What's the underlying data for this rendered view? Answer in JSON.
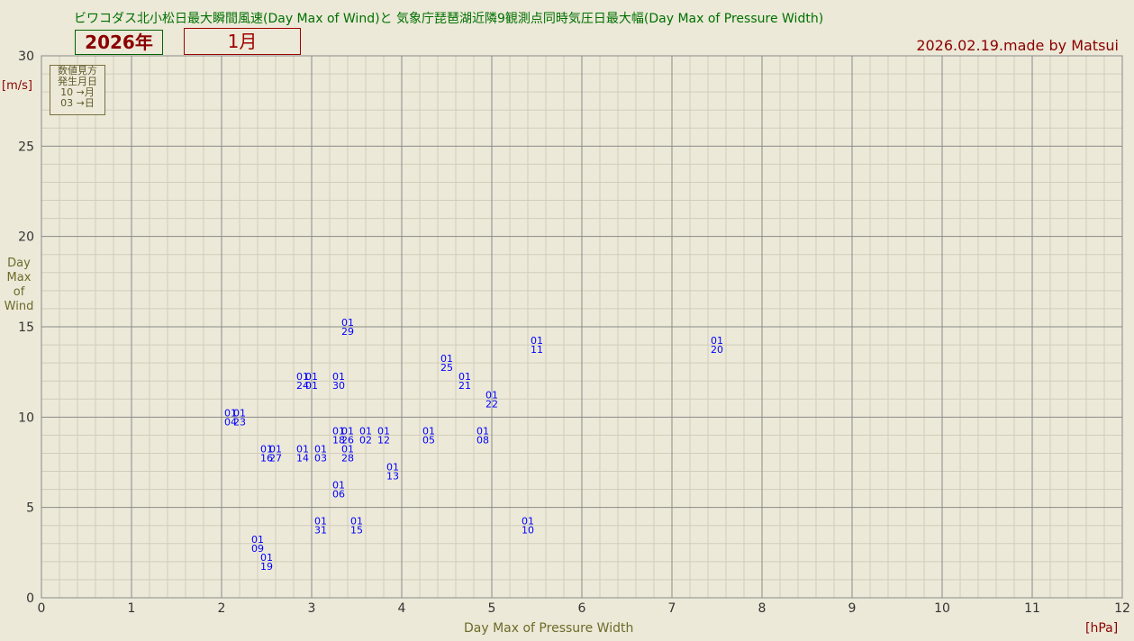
{
  "header": {
    "title": "ビワコダス北小松日最大瞬間風速(Day Max of Wind)と 気象庁琵琶湖近隣9観測点同時気圧日最大幅(Day Max of Pressure Width)",
    "year": "2026年",
    "month": "1月",
    "made_by": "2026.02.19.made by Matsui"
  },
  "legend": {
    "lines": [
      "数値見方",
      "発生月日",
      "10 →月",
      "03 →日"
    ]
  },
  "chart_data": {
    "type": "scatter",
    "xlabel": "Day Max  of Pressure Width",
    "xunit": "[hPa]",
    "ylabel_lines": [
      "Day",
      "Max",
      "of",
      "Wind"
    ],
    "yunit": "[m/s]",
    "xlim": [
      0,
      12
    ],
    "ylim": [
      0,
      30
    ],
    "x_ticks": [
      0,
      1,
      2,
      3,
      4,
      5,
      6,
      7,
      8,
      9,
      10,
      11,
      12
    ],
    "y_ticks": [
      0,
      5,
      10,
      15,
      20,
      25,
      30
    ],
    "grid": true,
    "point_color": "#0000ff",
    "points": [
      {
        "month": "01",
        "day": "29",
        "x": 3.4,
        "y": 15.0
      },
      {
        "month": "01",
        "day": "11",
        "x": 5.5,
        "y": 14.0
      },
      {
        "month": "01",
        "day": "20",
        "x": 7.5,
        "y": 14.0
      },
      {
        "month": "01",
        "day": "25",
        "x": 4.5,
        "y": 13.0
      },
      {
        "month": "01",
        "day": "24",
        "x": 2.9,
        "y": 12.0
      },
      {
        "month": "01",
        "day": "01",
        "x": 3.0,
        "y": 12.0
      },
      {
        "month": "01",
        "day": "30",
        "x": 3.3,
        "y": 12.0
      },
      {
        "month": "01",
        "day": "21",
        "x": 4.7,
        "y": 12.0
      },
      {
        "month": "01",
        "day": "22",
        "x": 5.0,
        "y": 11.0
      },
      {
        "month": "01",
        "day": "04",
        "x": 2.1,
        "y": 10.0
      },
      {
        "month": "01",
        "day": "23",
        "x": 2.2,
        "y": 10.0
      },
      {
        "month": "01",
        "day": "18",
        "x": 3.3,
        "y": 9.0
      },
      {
        "month": "01",
        "day": "26",
        "x": 3.4,
        "y": 9.0
      },
      {
        "month": "01",
        "day": "02",
        "x": 3.6,
        "y": 9.0
      },
      {
        "month": "01",
        "day": "12",
        "x": 3.8,
        "y": 9.0
      },
      {
        "month": "01",
        "day": "05",
        "x": 4.3,
        "y": 9.0
      },
      {
        "month": "01",
        "day": "08",
        "x": 4.9,
        "y": 9.0
      },
      {
        "month": "01",
        "day": "16",
        "x": 2.5,
        "y": 8.0
      },
      {
        "month": "01",
        "day": "27",
        "x": 2.6,
        "y": 8.0
      },
      {
        "month": "01",
        "day": "14",
        "x": 2.9,
        "y": 8.0
      },
      {
        "month": "01",
        "day": "03",
        "x": 3.1,
        "y": 8.0
      },
      {
        "month": "01",
        "day": "28",
        "x": 3.4,
        "y": 8.0
      },
      {
        "month": "01",
        "day": "13",
        "x": 3.9,
        "y": 7.0
      },
      {
        "month": "01",
        "day": "06",
        "x": 3.3,
        "y": 6.0
      },
      {
        "month": "01",
        "day": "31",
        "x": 3.1,
        "y": 4.0
      },
      {
        "month": "01",
        "day": "15",
        "x": 3.5,
        "y": 4.0
      },
      {
        "month": "01",
        "day": "10",
        "x": 5.4,
        "y": 4.0
      },
      {
        "month": "01",
        "day": "09",
        "x": 2.4,
        "y": 3.0
      },
      {
        "month": "01",
        "day": "19",
        "x": 2.5,
        "y": 2.0
      }
    ]
  }
}
